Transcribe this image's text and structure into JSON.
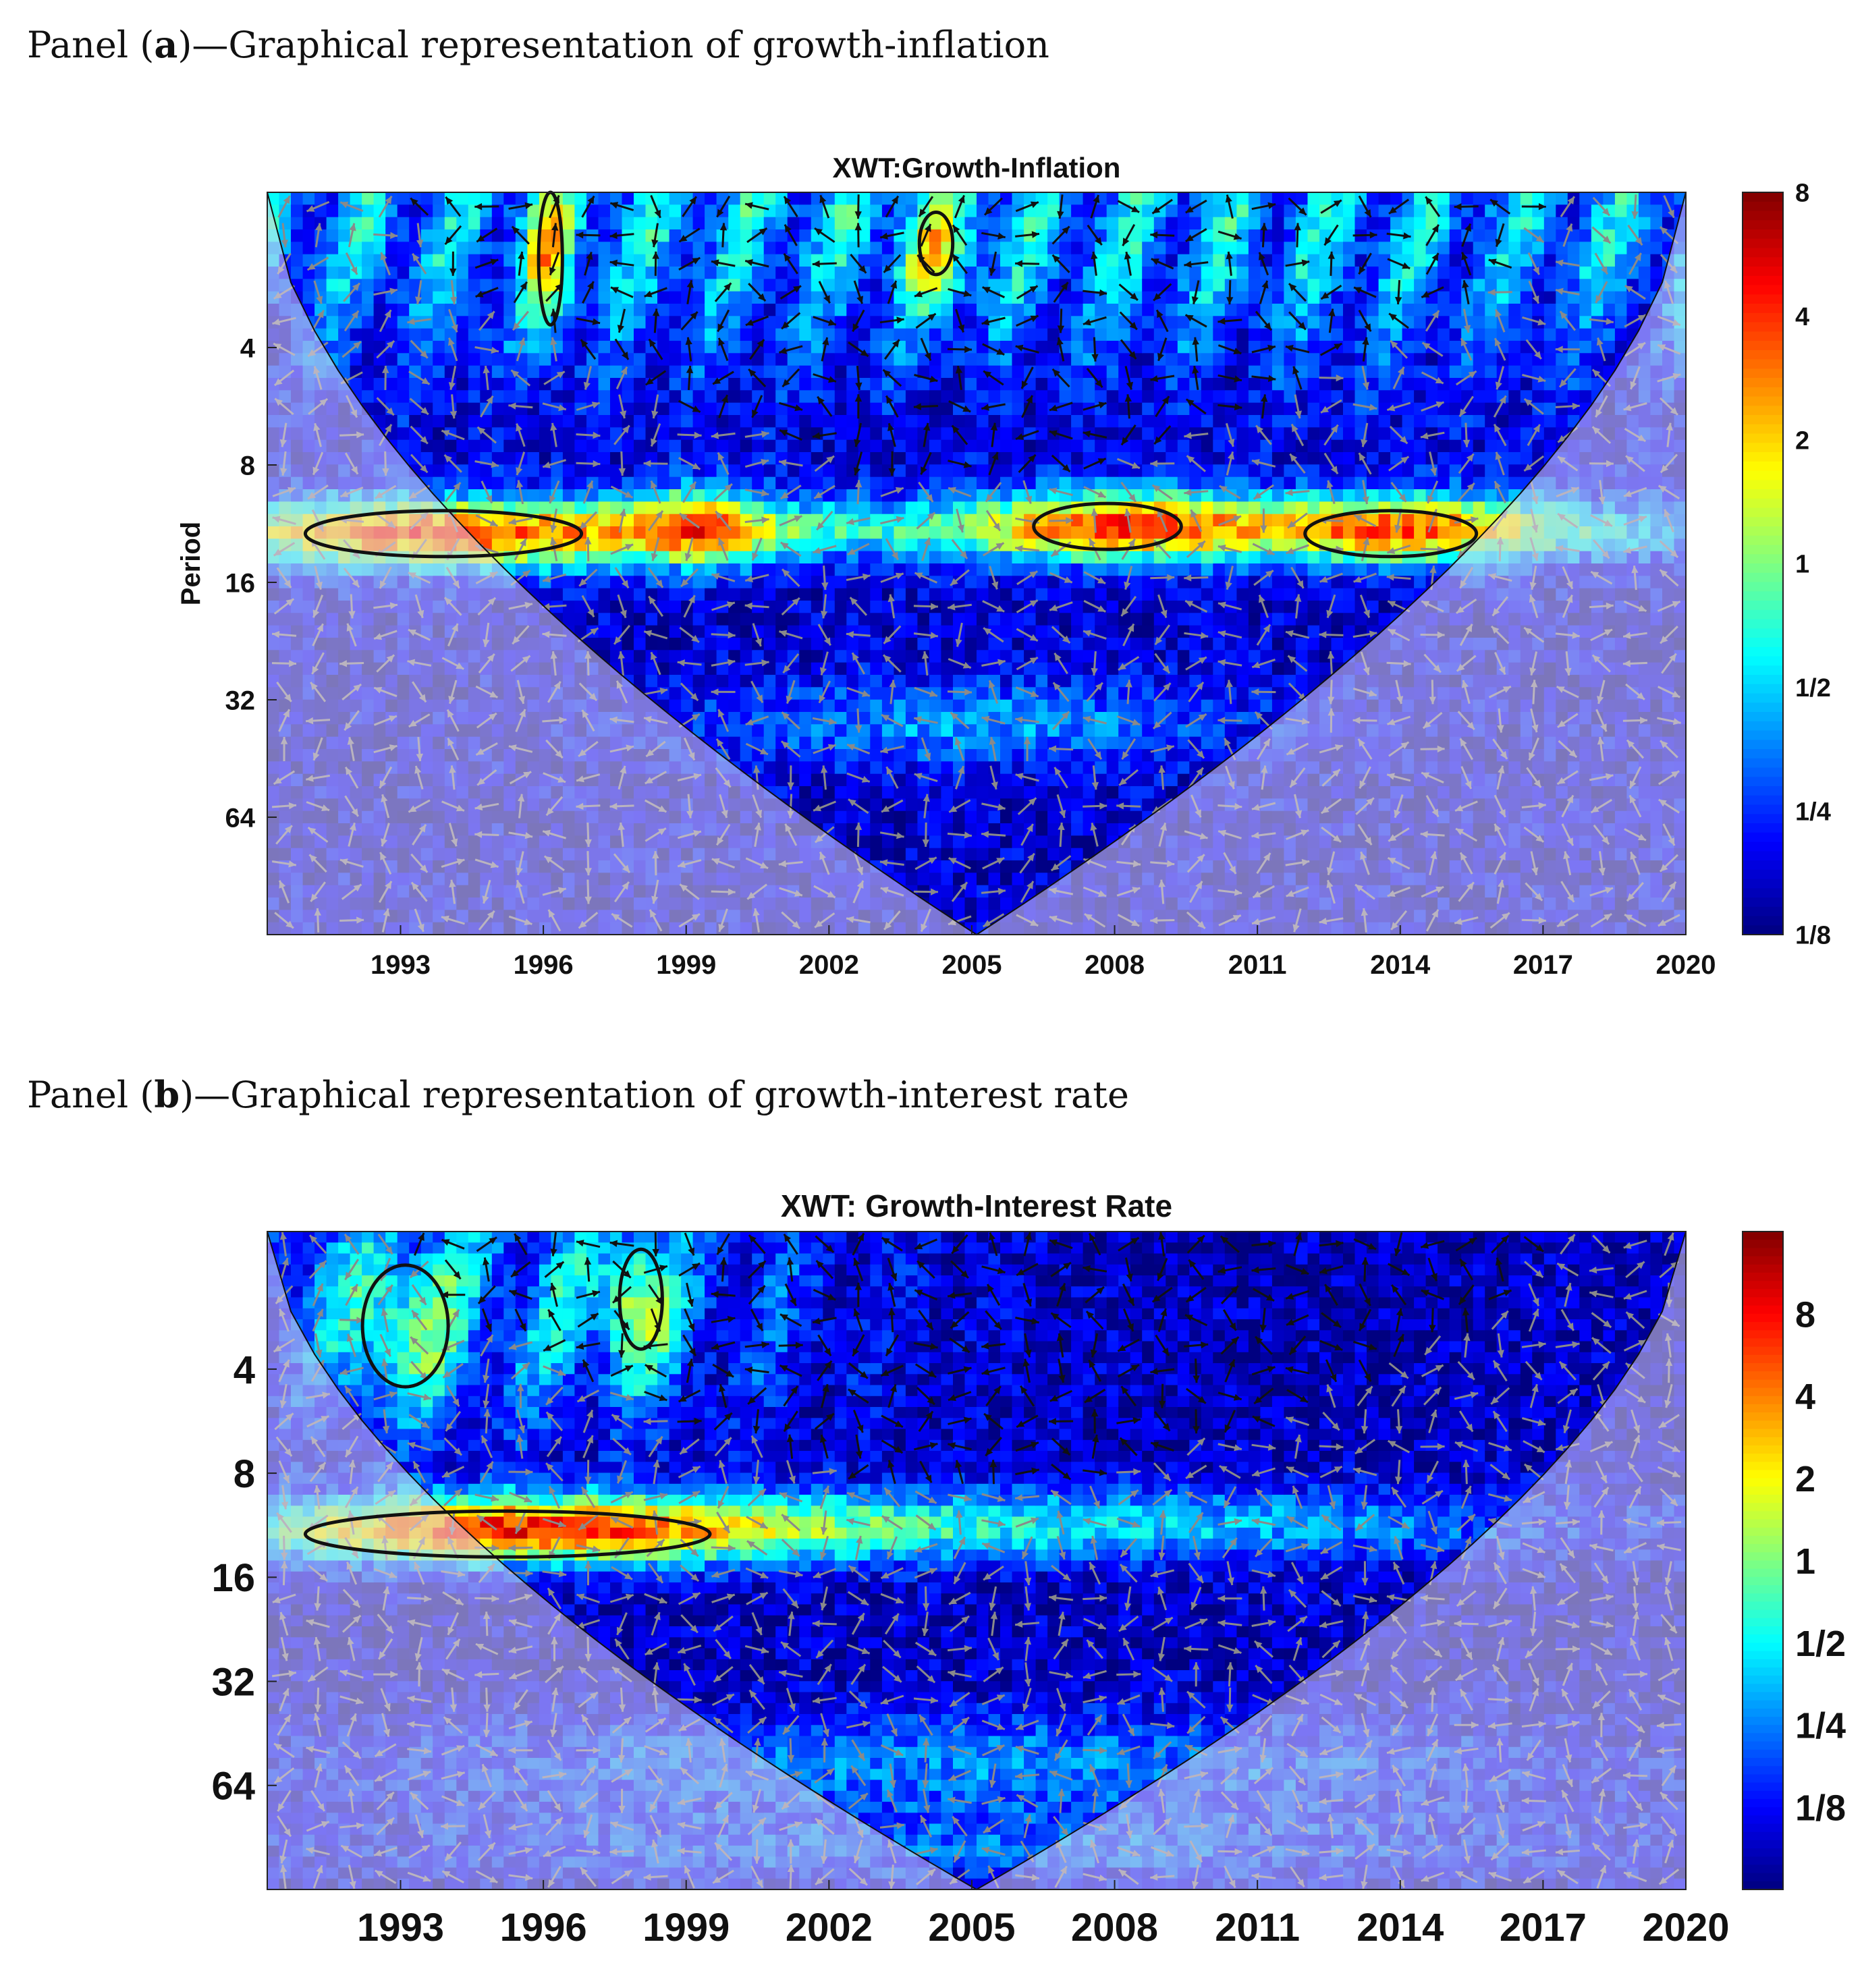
{
  "captions": {
    "a": {
      "prefix": "Panel (",
      "letter": "a",
      "suffix": ")—Graphical representation of growth-inflation"
    },
    "b": {
      "prefix": "Panel (",
      "letter": "b",
      "suffix": ")—Graphical representation of growth-interest rate"
    }
  },
  "chart_data": [
    {
      "type": "heatmap",
      "title": "XWT:Growth-Inflation",
      "xlabel": "",
      "ylabel": "Period",
      "x_ticks": [
        1993,
        1996,
        1999,
        2002,
        2005,
        2008,
        2011,
        2014,
        2017,
        2020
      ],
      "xlim": [
        1990.2,
        2020
      ],
      "y_scale": "log2",
      "y_ticks": [
        4,
        8,
        16,
        32,
        64
      ],
      "ylim": [
        1.6,
        128
      ],
      "colorbar": {
        "scale": "log2",
        "ticks": [
          "1/8",
          "1/4",
          "1/2",
          "1",
          "2",
          "4",
          "8"
        ],
        "range": [
          0.125,
          8
        ]
      },
      "colormap": "jet",
      "significant_regions": [
        {
          "x_range": [
            1991.0,
            1996.8
          ],
          "period": 12,
          "power": "4-8"
        },
        {
          "x_range": [
            2006.3,
            2009.4
          ],
          "period": 11.5,
          "power": "4"
        },
        {
          "x_range": [
            2012.0,
            2015.6
          ],
          "period": 12,
          "power": "4-8"
        },
        {
          "x_range": [
            1995.9,
            1996.4
          ],
          "period_range": [
            1.6,
            3.5
          ],
          "power": "4-8"
        },
        {
          "x_range": [
            2003.9,
            2004.6
          ],
          "period_range": [
            1.8,
            2.6
          ],
          "power": "4"
        }
      ],
      "annotations": [
        "cone of influence shaded",
        "phase arrows",
        "5% significance contours"
      ]
    },
    {
      "type": "heatmap",
      "title": "XWT: Growth-Interest Rate",
      "xlabel": "",
      "ylabel": "",
      "x_ticks": [
        1993,
        1996,
        1999,
        2002,
        2005,
        2008,
        2011,
        2014,
        2017,
        2020
      ],
      "xlim": [
        1990.2,
        2020
      ],
      "y_scale": "log2",
      "y_ticks": [
        4,
        8,
        16,
        32,
        64
      ],
      "ylim": [
        1.6,
        128
      ],
      "colorbar": {
        "scale": "log2",
        "ticks": [
          "1/8",
          "1/4",
          "1/2",
          "1",
          "2",
          "4",
          "8"
        ],
        "range": [
          0.0625,
          16
        ]
      },
      "colormap": "jet",
      "significant_regions": [
        {
          "x_range": [
            1991.0,
            1999.5
          ],
          "period": 12,
          "power": "8-16"
        },
        {
          "x_range": [
            1992.2,
            1994.0
          ],
          "period_range": [
            2.0,
            4.5
          ],
          "power": "2"
        },
        {
          "x_range": [
            1997.6,
            1998.5
          ],
          "period_range": [
            1.8,
            3.5
          ],
          "power": "4"
        }
      ],
      "annotations": [
        "cone of influence shaded",
        "phase arrows",
        "5% significance contours"
      ]
    }
  ]
}
